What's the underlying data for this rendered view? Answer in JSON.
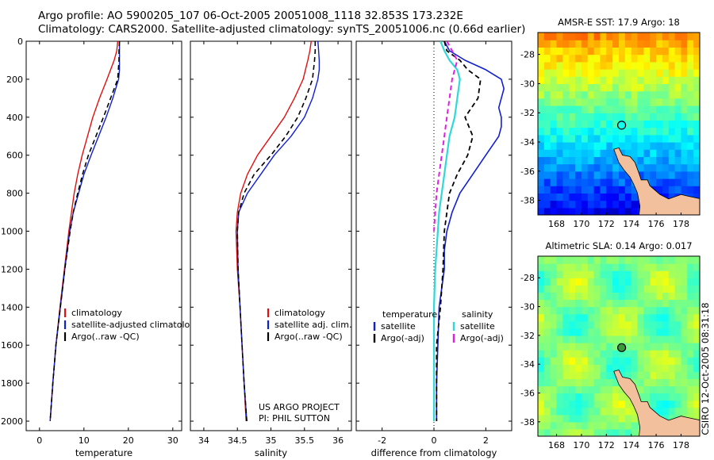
{
  "header": {
    "line1": "Argo profile: AO 5900205_107 06-Oct-2005 20051008_1118 32.853S 173.232E",
    "line2": "Climatology: CARS2000. Satellite-adjusted climatology: synTS_20051006.nc (0.66d earlier)"
  },
  "colors": {
    "climatology": "#e01010",
    "satellite": "#1020d0",
    "argo": "#000000",
    "salinity_sat": "#30d8d8",
    "salinity_argo": "#e020e0",
    "land": "#f2c09c"
  },
  "chart_data": [
    {
      "type": "line",
      "title": "",
      "xlabel": "temperature",
      "ylabel": "",
      "xlim": [
        -3,
        32
      ],
      "ylim": [
        2050,
        0
      ],
      "x_ticks": [
        "0",
        "10",
        "20",
        "30"
      ],
      "y_ticks": [
        "0",
        "200",
        "400",
        "600",
        "800",
        "1000",
        "1200",
        "1400",
        "1600",
        "1800",
        "2000"
      ],
      "legend": [
        "climatology",
        "satellite-adjusted climatology",
        "Argo(..raw -QC)"
      ],
      "series": [
        {
          "name": "climatology",
          "depth": [
            0,
            50,
            100,
            200,
            300,
            400,
            500,
            600,
            700,
            800,
            900,
            1000,
            1200,
            1400,
            1600,
            1800,
            2000
          ],
          "values": [
            17.6,
            17.4,
            16.8,
            15.2,
            13.5,
            12.0,
            10.8,
            9.6,
            8.6,
            7.8,
            7.2,
            6.6,
            5.6,
            4.6,
            3.7,
            3.0,
            2.4
          ]
        },
        {
          "name": "satellite-adjusted climatology",
          "depth": [
            0,
            50,
            100,
            150,
            200,
            300,
            400,
            500,
            600,
            700,
            800,
            900,
            1000,
            1200,
            1400,
            1600,
            1800,
            2000
          ],
          "values": [
            18.0,
            18.0,
            18.0,
            18.0,
            17.8,
            16.5,
            15.0,
            13.3,
            11.6,
            10.0,
            8.8,
            7.6,
            6.8,
            5.7,
            4.7,
            3.7,
            3.0,
            2.4
          ]
        },
        {
          "name": "Argo(..raw -QC)",
          "depth": [
            0,
            50,
            100,
            200,
            300,
            400,
            500,
            600,
            700,
            800,
            900,
            1000,
            1200,
            1400,
            1600,
            1800,
            2000
          ],
          "values": [
            18.0,
            17.9,
            17.9,
            17.6,
            16.0,
            14.4,
            12.7,
            11.0,
            9.7,
            8.6,
            7.6,
            6.9,
            5.7,
            4.7,
            3.7,
            3.0,
            2.4
          ]
        }
      ]
    },
    {
      "type": "line",
      "title": "",
      "xlabel": "salinity",
      "ylabel": "",
      "xlim": [
        33.8,
        36.2
      ],
      "ylim": [
        2050,
        0
      ],
      "x_ticks": [
        "34",
        "34.5",
        "35",
        "35.5",
        "36"
      ],
      "legend": [
        "climatology",
        "satellite adj. clim.",
        "Argo(..raw -QC)"
      ],
      "annotation": [
        "US ARGO PROJECT",
        "PI: PHIL SUTTON"
      ],
      "series": [
        {
          "name": "climatology",
          "depth": [
            0,
            50,
            100,
            200,
            300,
            400,
            500,
            600,
            700,
            800,
            900,
            1000,
            1200,
            1400,
            1600,
            1800,
            2000
          ],
          "values": [
            35.6,
            35.58,
            35.55,
            35.48,
            35.35,
            35.2,
            35.0,
            34.8,
            34.65,
            34.55,
            34.5,
            34.48,
            34.5,
            34.54,
            34.57,
            34.6,
            34.63
          ]
        },
        {
          "name": "satellite adj. clim.",
          "depth": [
            0,
            50,
            100,
            150,
            200,
            300,
            400,
            500,
            600,
            700,
            800,
            900,
            1000,
            1200,
            1400,
            1600,
            1800,
            2000
          ],
          "values": [
            35.7,
            35.71,
            35.72,
            35.72,
            35.7,
            35.62,
            35.5,
            35.3,
            35.05,
            34.85,
            34.65,
            34.52,
            34.5,
            34.51,
            34.54,
            34.57,
            34.6,
            34.64
          ]
        },
        {
          "name": "Argo(..raw -QC)",
          "depth": [
            0,
            50,
            100,
            200,
            300,
            400,
            500,
            600,
            700,
            800,
            900,
            1000,
            1200,
            1400,
            1600,
            1800,
            2000
          ],
          "values": [
            35.66,
            35.66,
            35.65,
            35.62,
            35.52,
            35.4,
            35.22,
            35.0,
            34.75,
            34.6,
            34.52,
            34.5,
            34.51,
            34.54,
            34.57,
            34.6,
            34.64
          ]
        }
      ]
    },
    {
      "type": "line",
      "title": "",
      "xlabel": "difference from climatology",
      "ylabel": "",
      "xlim": [
        -3,
        3
      ],
      "ylim": [
        2050,
        0
      ],
      "x_ticks": [
        "-2",
        "0",
        "2"
      ],
      "legend_groups": [
        {
          "heading": "temperature",
          "items": [
            "satellite",
            "Argo(-adj)"
          ]
        },
        {
          "heading": "salinity",
          "items": [
            "satellite",
            "Argo(-adj)"
          ]
        }
      ],
      "series": [
        {
          "name": "temperature satellite",
          "depth": [
            0,
            50,
            100,
            150,
            200,
            250,
            300,
            350,
            400,
            450,
            500,
            600,
            700,
            800,
            900,
            1000,
            1100,
            1200,
            1400,
            1600,
            1800,
            2000
          ],
          "values": [
            0.4,
            0.6,
            1.2,
            2.0,
            2.6,
            2.7,
            2.6,
            2.5,
            2.6,
            2.6,
            2.5,
            2.0,
            1.5,
            1.0,
            0.7,
            0.5,
            0.4,
            0.4,
            0.2,
            0.15,
            0.1,
            0.1
          ]
        },
        {
          "name": "temperature Argo(-adj)",
          "depth": [
            0,
            50,
            100,
            150,
            200,
            300,
            400,
            500,
            600,
            700,
            800,
            900,
            1000,
            1200,
            1400,
            1600,
            1800,
            2000
          ],
          "values": [
            0.4,
            0.5,
            1.0,
            1.3,
            1.8,
            1.7,
            1.2,
            1.5,
            1.3,
            0.9,
            0.6,
            0.5,
            0.4,
            0.35,
            0.25,
            0.1,
            0.1,
            0.1
          ]
        },
        {
          "name": "salinity satellite",
          "depth": [
            0,
            50,
            100,
            150,
            200,
            300,
            400,
            500,
            600,
            700,
            800,
            900,
            1000,
            1200,
            1400,
            1600,
            1800,
            2000
          ],
          "values": [
            0.25,
            0.4,
            0.6,
            0.9,
            1.0,
            0.9,
            0.8,
            0.6,
            0.5,
            0.4,
            0.3,
            0.2,
            0.15,
            0.05,
            0.0,
            0.0,
            0.0,
            0.0
          ]
        },
        {
          "name": "salinity Argo(-adj)",
          "depth": [
            0,
            50,
            100,
            150,
            200,
            300,
            400,
            500,
            600,
            700,
            800,
            900,
            1000
          ],
          "values": [
            0.5,
            0.7,
            0.9,
            0.8,
            0.7,
            0.6,
            0.5,
            0.4,
            0.3,
            0.2,
            0.1,
            0.05,
            0.0
          ]
        }
      ]
    },
    {
      "type": "heatmap",
      "title": "AMSR-E SST: 17.9 Argo: 18",
      "x_ticks": [
        "168",
        "170",
        "172",
        "174",
        "176",
        "178"
      ],
      "y_ticks": [
        "-28",
        "-30",
        "-32",
        "-34",
        "-36",
        "-38"
      ],
      "xlim": [
        166.5,
        179.5
      ],
      "ylim": [
        -39,
        -26.5
      ],
      "argo_position": [
        173.23,
        -32.85
      ]
    },
    {
      "type": "heatmap",
      "title": "Altimetric SLA: 0.14 Argo: 0.017",
      "x_ticks": [
        "168",
        "170",
        "172",
        "174",
        "176",
        "178"
      ],
      "y_ticks": [
        "-28",
        "-30",
        "-32",
        "-34",
        "-36",
        "-38"
      ],
      "xlim": [
        166.5,
        179.5
      ],
      "ylim": [
        -39,
        -26.5
      ],
      "argo_position": [
        173.23,
        -32.85
      ]
    }
  ],
  "credit": "CSIRO 12-Oct-2005 08:31:18"
}
